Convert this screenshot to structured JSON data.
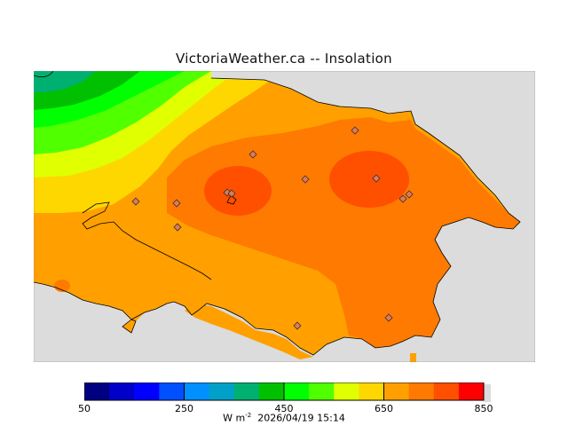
{
  "title": "VictoriaWeather.ca  --  Insolation",
  "units_label": "W m",
  "units_exponent": "-2",
  "timestamp": "2026/04/19 15:14",
  "colorbar": {
    "min": 50,
    "max": 850,
    "step": 50,
    "tick_labels": [
      "50",
      "250",
      "450",
      "650",
      "850"
    ],
    "colors": [
      "#000080",
      "#0000c8",
      "#0000ff",
      "#0050ff",
      "#0090ff",
      "#00a0c8",
      "#00b070",
      "#00c000",
      "#00ff00",
      "#50ff00",
      "#e0ff00",
      "#ffd700",
      "#ffa000",
      "#ff7a00",
      "#ff5000",
      "#ff0000"
    ]
  },
  "map": {
    "land_color": "#dcdcdc",
    "contour_fill_levels": [
      "250",
      "300",
      "350",
      "400",
      "450",
      "500",
      "550",
      "600",
      "650",
      "700",
      "750"
    ],
    "station_marker": "diamond",
    "station_count": 13
  }
}
